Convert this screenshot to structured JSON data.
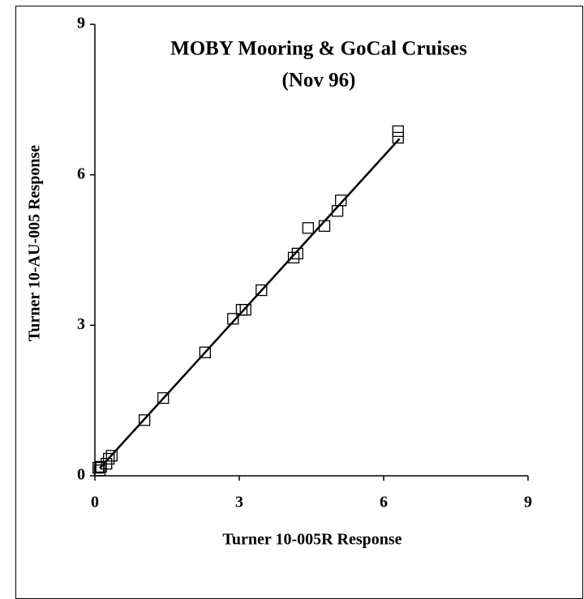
{
  "chart_data": {
    "type": "scatter",
    "title": [
      "MOBY Mooring & GoCal Cruises",
      "(Nov 96)"
    ],
    "x_label": "Turner 10-005R Response",
    "y_label": "Turner 10-AU-005 Response",
    "xlim": [
      0,
      9
    ],
    "ylim": [
      0,
      9
    ],
    "xticks": [
      0,
      3,
      6,
      9
    ],
    "yticks": [
      0,
      3,
      6,
      9
    ],
    "series": [
      {
        "marker": "square",
        "color": "#000000",
        "x": [
          5.11,
          5.04,
          4.77,
          4.43,
          4.13,
          4.21,
          6.3,
          6.3,
          3.46,
          3.13,
          3.05,
          2.87,
          2.29,
          1.42,
          1.03,
          0.35,
          0.29,
          0.24,
          0.13,
          0.07,
          0.1
        ],
        "values": [
          5.49,
          5.28,
          4.98,
          4.94,
          4.35,
          4.43,
          6.87,
          6.74,
          3.7,
          3.31,
          3.31,
          3.13,
          2.46,
          1.55,
          1.11,
          0.4,
          0.34,
          0.24,
          0.18,
          0.16,
          0.11
        ]
      },
      {
        "marker": "line",
        "color": "#000000",
        "x": [
          0.1,
          6.33
        ],
        "values": [
          0.15,
          6.72
        ]
      }
    ]
  }
}
